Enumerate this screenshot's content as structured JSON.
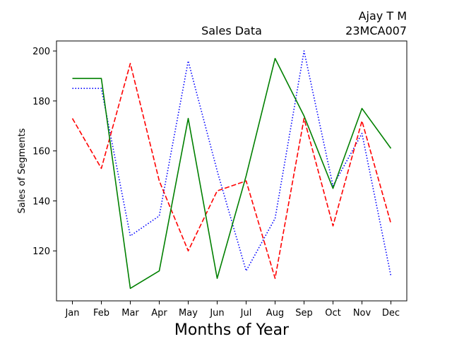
{
  "chart_data": {
    "type": "line",
    "title": "Sales Data",
    "author_name": "Ajay T M",
    "author_id": "23MCA007",
    "xlabel": "Months of Year",
    "ylabel": "Sales of Segments",
    "categories": [
      "Jan",
      "Feb",
      "Mar",
      "Apr",
      "May",
      "Jun",
      "Jul",
      "Aug",
      "Sep",
      "Oct",
      "Nov",
      "Dec"
    ],
    "ylim": [
      100,
      204
    ],
    "yticks": [
      120,
      140,
      160,
      180,
      200
    ],
    "grid": false,
    "series": [
      {
        "color": "#0000ff",
        "style": "dotted",
        "values": [
          185,
          185,
          126,
          134,
          196,
          152,
          112,
          133,
          200,
          146,
          167,
          110
        ]
      },
      {
        "color": "#ff0000",
        "style": "dashed",
        "values": [
          173,
          153,
          195,
          148,
          120,
          144,
          148,
          109,
          173,
          130,
          172,
          131
        ]
      },
      {
        "color": "#008000",
        "style": "solid",
        "values": [
          189,
          189,
          105,
          112,
          173,
          109,
          150,
          197,
          174,
          145,
          177,
          161
        ]
      }
    ]
  }
}
